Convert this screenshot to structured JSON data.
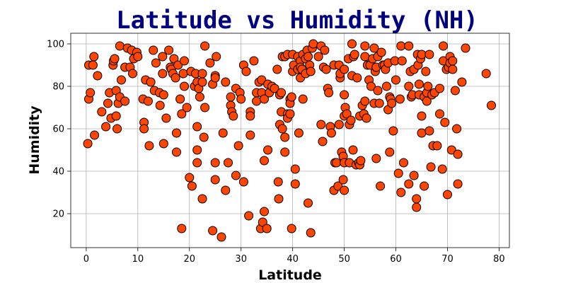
{
  "chart_data": {
    "type": "scatter",
    "title": "Latitude vs Humidity (NH)",
    "xlabel": "Latitude",
    "ylabel": "Humidity",
    "xlim": [
      -3,
      82
    ],
    "ylim": [
      4,
      105
    ],
    "xticks": [
      0,
      10,
      20,
      30,
      40,
      50,
      60,
      70,
      80
    ],
    "yticks": [
      20,
      40,
      60,
      80,
      100
    ],
    "grid": true,
    "marker_color": "#ff4500",
    "marker_edge_color": "#000000",
    "points": [
      [
        0.3,
        53
      ],
      [
        0.5,
        74
      ],
      [
        0.5,
        90
      ],
      [
        0.8,
        77
      ],
      [
        1.3,
        90
      ],
      [
        1.5,
        94
      ],
      [
        1.6,
        57
      ],
      [
        2.2,
        85
      ],
      [
        3.0,
        68
      ],
      [
        3.8,
        61
      ],
      [
        4.2,
        72
      ],
      [
        4.5,
        77
      ],
      [
        4.8,
        65
      ],
      [
        5.2,
        90
      ],
      [
        5.3,
        92
      ],
      [
        5.5,
        93
      ],
      [
        5.8,
        66
      ],
      [
        5.8,
        78
      ],
      [
        6.0,
        60
      ],
      [
        6.2,
        72
      ],
      [
        6.5,
        99
      ],
      [
        6.5,
        75
      ],
      [
        6.8,
        83
      ],
      [
        7.5,
        73
      ],
      [
        7.5,
        89
      ],
      [
        8.0,
        98
      ],
      [
        8.5,
        89
      ],
      [
        8.8,
        97
      ],
      [
        9.0,
        86
      ],
      [
        9.2,
        93
      ],
      [
        9.8,
        96
      ],
      [
        10.0,
        94
      ],
      [
        11.0,
        74
      ],
      [
        11.2,
        63
      ],
      [
        11.2,
        60
      ],
      [
        11.5,
        83
      ],
      [
        12.0,
        73
      ],
      [
        12.2,
        52
      ],
      [
        12.5,
        82
      ],
      [
        13.0,
        97
      ],
      [
        13.2,
        78
      ],
      [
        13.5,
        91
      ],
      [
        14.2,
        77
      ],
      [
        14.3,
        71
      ],
      [
        14.8,
        94
      ],
      [
        14.8,
        86
      ],
      [
        15.0,
        53
      ],
      [
        15.0,
        76
      ],
      [
        15.5,
        65
      ],
      [
        16.0,
        97
      ],
      [
        16.3,
        89
      ],
      [
        16.5,
        88
      ],
      [
        16.8,
        86
      ],
      [
        17.0,
        93
      ],
      [
        17.3,
        84
      ],
      [
        17.5,
        58
      ],
      [
        17.5,
        49
      ],
      [
        17.8,
        90
      ],
      [
        18.2,
        74
      ],
      [
        18.5,
        67
      ],
      [
        18.5,
        13
      ],
      [
        18.8,
        86
      ],
      [
        19.0,
        92
      ],
      [
        19.0,
        80
      ],
      [
        19.5,
        70
      ],
      [
        20.0,
        37
      ],
      [
        20.3,
        87
      ],
      [
        20.5,
        33
      ],
      [
        21.0,
        80
      ],
      [
        21.2,
        86
      ],
      [
        21.5,
        82
      ],
      [
        21.5,
        61
      ],
      [
        21.5,
        50
      ],
      [
        21.5,
        44
      ],
      [
        21.8,
        79
      ],
      [
        22.0,
        75
      ],
      [
        22.5,
        86
      ],
      [
        22.5,
        82
      ],
      [
        22.5,
        27
      ],
      [
        22.8,
        56
      ],
      [
        23.0,
        99
      ],
      [
        23.0,
        70
      ],
      [
        24.0,
        91
      ],
      [
        24.5,
        12
      ],
      [
        24.5,
        81
      ],
      [
        25.0,
        85
      ],
      [
        25.0,
        84
      ],
      [
        25.0,
        44
      ],
      [
        25.0,
        36
      ],
      [
        25.2,
        94
      ],
      [
        26.2,
        9
      ],
      [
        26.5,
        58
      ],
      [
        27.0,
        31
      ],
      [
        27.0,
        82
      ],
      [
        27.5,
        44
      ],
      [
        28.0,
        75
      ],
      [
        28.0,
        71
      ],
      [
        28.2,
        68
      ],
      [
        28.5,
        66
      ],
      [
        29.0,
        38
      ],
      [
        29.0,
        79
      ],
      [
        29.5,
        52
      ],
      [
        29.8,
        77
      ],
      [
        30.0,
        74
      ],
      [
        30.5,
        90
      ],
      [
        30.5,
        35
      ],
      [
        31.0,
        87
      ],
      [
        31.5,
        19
      ],
      [
        31.8,
        68
      ],
      [
        31.8,
        66
      ],
      [
        31.8,
        57
      ],
      [
        32.5,
        92
      ],
      [
        33.0,
        73
      ],
      [
        33.0,
        77
      ],
      [
        33.5,
        82
      ],
      [
        33.8,
        13
      ],
      [
        34.0,
        83
      ],
      [
        34.0,
        77
      ],
      [
        34.2,
        16
      ],
      [
        34.5,
        21
      ],
      [
        34.5,
        45
      ],
      [
        34.5,
        74
      ],
      [
        35.0,
        13
      ],
      [
        35.2,
        50
      ],
      [
        35.2,
        81
      ],
      [
        35.5,
        77
      ],
      [
        36.0,
        80
      ],
      [
        36.5,
        79
      ],
      [
        37.0,
        88
      ],
      [
        37.2,
        35
      ],
      [
        37.3,
        27
      ],
      [
        37.5,
        62
      ],
      [
        37.5,
        76
      ],
      [
        37.8,
        68
      ],
      [
        37.8,
        77
      ],
      [
        38.0,
        94
      ],
      [
        38.0,
        60
      ],
      [
        38.5,
        49
      ],
      [
        38.5,
        56
      ],
      [
        38.5,
        94
      ],
      [
        39.0,
        95
      ],
      [
        39.0,
        67
      ],
      [
        39.0,
        65
      ],
      [
        39.5,
        74
      ],
      [
        39.5,
        72
      ],
      [
        39.5,
        67
      ],
      [
        39.8,
        13
      ],
      [
        39.8,
        75
      ],
      [
        40.0,
        87
      ],
      [
        40.0,
        95
      ],
      [
        40.2,
        90
      ],
      [
        40.5,
        34
      ],
      [
        40.5,
        41
      ],
      [
        41.0,
        94
      ],
      [
        41.0,
        88
      ],
      [
        41.2,
        58
      ],
      [
        41.5,
        92
      ],
      [
        41.5,
        84
      ],
      [
        41.5,
        89
      ],
      [
        41.8,
        88
      ],
      [
        42.0,
        95
      ],
      [
        42.0,
        74
      ],
      [
        42.5,
        93
      ],
      [
        42.5,
        86
      ],
      [
        42.8,
        97
      ],
      [
        43.0,
        25
      ],
      [
        43.0,
        94
      ],
      [
        43.3,
        90
      ],
      [
        43.5,
        11
      ],
      [
        43.5,
        87
      ],
      [
        43.8,
        98
      ],
      [
        44.0,
        100
      ],
      [
        45.0,
        94
      ],
      [
        45.5,
        62
      ],
      [
        45.5,
        99
      ],
      [
        45.8,
        54
      ],
      [
        46.0,
        89
      ],
      [
        46.2,
        97
      ],
      [
        46.5,
        88
      ],
      [
        46.8,
        79
      ],
      [
        47.0,
        77
      ],
      [
        47.3,
        61
      ],
      [
        47.5,
        58
      ],
      [
        48.0,
        90
      ],
      [
        48.0,
        31
      ],
      [
        48.2,
        44
      ],
      [
        48.5,
        44
      ],
      [
        48.8,
        33
      ],
      [
        49.0,
        62
      ],
      [
        49.0,
        90
      ],
      [
        49.2,
        84
      ],
      [
        49.2,
        86
      ],
      [
        49.5,
        49
      ],
      [
        49.8,
        47
      ],
      [
        49.8,
        36
      ],
      [
        50.0,
        88
      ],
      [
        50.0,
        31
      ],
      [
        50.0,
        66
      ],
      [
        50.0,
        76
      ],
      [
        50.0,
        44
      ],
      [
        50.2,
        70
      ],
      [
        50.5,
        67
      ],
      [
        50.8,
        93
      ],
      [
        51.0,
        44
      ],
      [
        51.0,
        62
      ],
      [
        51.3,
        64
      ],
      [
        51.5,
        100
      ],
      [
        51.5,
        85
      ],
      [
        51.7,
        50
      ],
      [
        51.8,
        94
      ],
      [
        52.0,
        95
      ],
      [
        52.3,
        43
      ],
      [
        52.5,
        84
      ],
      [
        52.8,
        44
      ],
      [
        53.0,
        43
      ],
      [
        53.0,
        66
      ],
      [
        53.2,
        45
      ],
      [
        53.5,
        71
      ],
      [
        53.8,
        67
      ],
      [
        54.0,
        99
      ],
      [
        54.0,
        73
      ],
      [
        54.0,
        94
      ],
      [
        54.3,
        65
      ],
      [
        54.5,
        90
      ],
      [
        54.8,
        83
      ],
      [
        55.0,
        90
      ],
      [
        55.2,
        80
      ],
      [
        55.5,
        93
      ],
      [
        55.8,
        72
      ],
      [
        55.8,
        98
      ],
      [
        56.0,
        87
      ],
      [
        56.2,
        46
      ],
      [
        56.2,
        89
      ],
      [
        56.5,
        94
      ],
      [
        56.5,
        78
      ],
      [
        56.8,
        72
      ],
      [
        57.0,
        33
      ],
      [
        57.2,
        96
      ],
      [
        57.5,
        90
      ],
      [
        57.8,
        90
      ],
      [
        58.0,
        88
      ],
      [
        58.2,
        80
      ],
      [
        58.5,
        69
      ],
      [
        58.5,
        91
      ],
      [
        58.8,
        49
      ],
      [
        58.8,
        75
      ],
      [
        59.0,
        74
      ],
      [
        59.2,
        72
      ],
      [
        59.5,
        59
      ],
      [
        59.8,
        92
      ],
      [
        60.0,
        83
      ],
      [
        60.5,
        39
      ],
      [
        60.8,
        74
      ],
      [
        61.0,
        99
      ],
      [
        61.0,
        30
      ],
      [
        61.2,
        92
      ],
      [
        61.5,
        44
      ],
      [
        62.5,
        80
      ],
      [
        62.5,
        99
      ],
      [
        62.5,
        34
      ],
      [
        62.8,
        87
      ],
      [
        63.0,
        75
      ],
      [
        63.2,
        76
      ],
      [
        63.5,
        38
      ],
      [
        63.5,
        88
      ],
      [
        64.0,
        27
      ],
      [
        64.0,
        23
      ],
      [
        64.2,
        95
      ],
      [
        64.3,
        90
      ],
      [
        64.5,
        81
      ],
      [
        64.5,
        76
      ],
      [
        64.8,
        93
      ],
      [
        65.0,
        58
      ],
      [
        65.0,
        66
      ],
      [
        65.0,
        95
      ],
      [
        65.5,
        33
      ],
      [
        65.5,
        75
      ],
      [
        65.8,
        87
      ],
      [
        66.0,
        77
      ],
      [
        66.0,
        73
      ],
      [
        66.2,
        80
      ],
      [
        66.5,
        95
      ],
      [
        66.5,
        59
      ],
      [
        66.8,
        42
      ],
      [
        67.0,
        76
      ],
      [
        67.2,
        52
      ],
      [
        67.5,
        77
      ],
      [
        68.0,
        52
      ],
      [
        68.5,
        67
      ],
      [
        68.5,
        79
      ],
      [
        69.0,
        41
      ],
      [
        69.2,
        92
      ],
      [
        69.2,
        99
      ],
      [
        69.5,
        63
      ],
      [
        69.8,
        88
      ],
      [
        70.0,
        29
      ],
      [
        70.2,
        89
      ],
      [
        70.5,
        94
      ],
      [
        70.5,
        91
      ],
      [
        70.8,
        50
      ],
      [
        71.0,
        92
      ],
      [
        71.0,
        88
      ],
      [
        71.5,
        78
      ],
      [
        71.8,
        60
      ],
      [
        72.0,
        34
      ],
      [
        72.0,
        48
      ],
      [
        72.8,
        82
      ],
      [
        73.5,
        98
      ],
      [
        77.5,
        86
      ],
      [
        78.5,
        71
      ]
    ]
  }
}
